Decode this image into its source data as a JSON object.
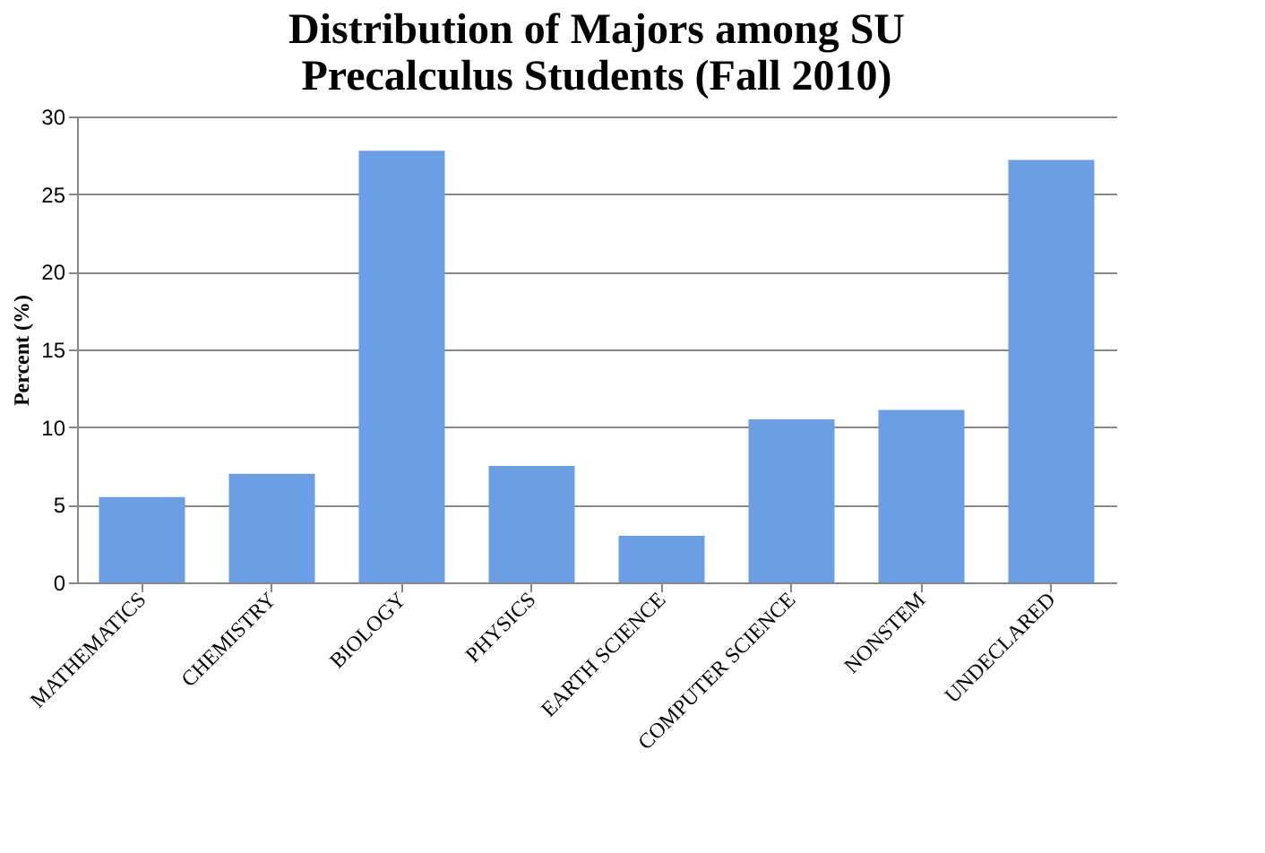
{
  "chart_data": {
    "type": "bar",
    "title": [
      "Distribution of Majors among SU",
      "Precalculus Students (Fall 2010)"
    ],
    "ylabel": "Percent (%)",
    "categories": [
      "MATHEMATICS",
      "CHEMISTRY",
      "BIOLOGY",
      "PHYSICS",
      "EARTH SCIENCE",
      "COMPUTER SCIENCE",
      "NONSTEM",
      "UNDECLARED"
    ],
    "values": [
      5.5,
      7.0,
      27.8,
      7.5,
      3.0,
      10.5,
      11.1,
      27.2
    ],
    "color": "#6a9fe6",
    "ylim": [
      0,
      30
    ],
    "yticks": [
      0,
      5,
      10,
      15,
      20,
      25,
      30
    ],
    "grid": "y"
  }
}
